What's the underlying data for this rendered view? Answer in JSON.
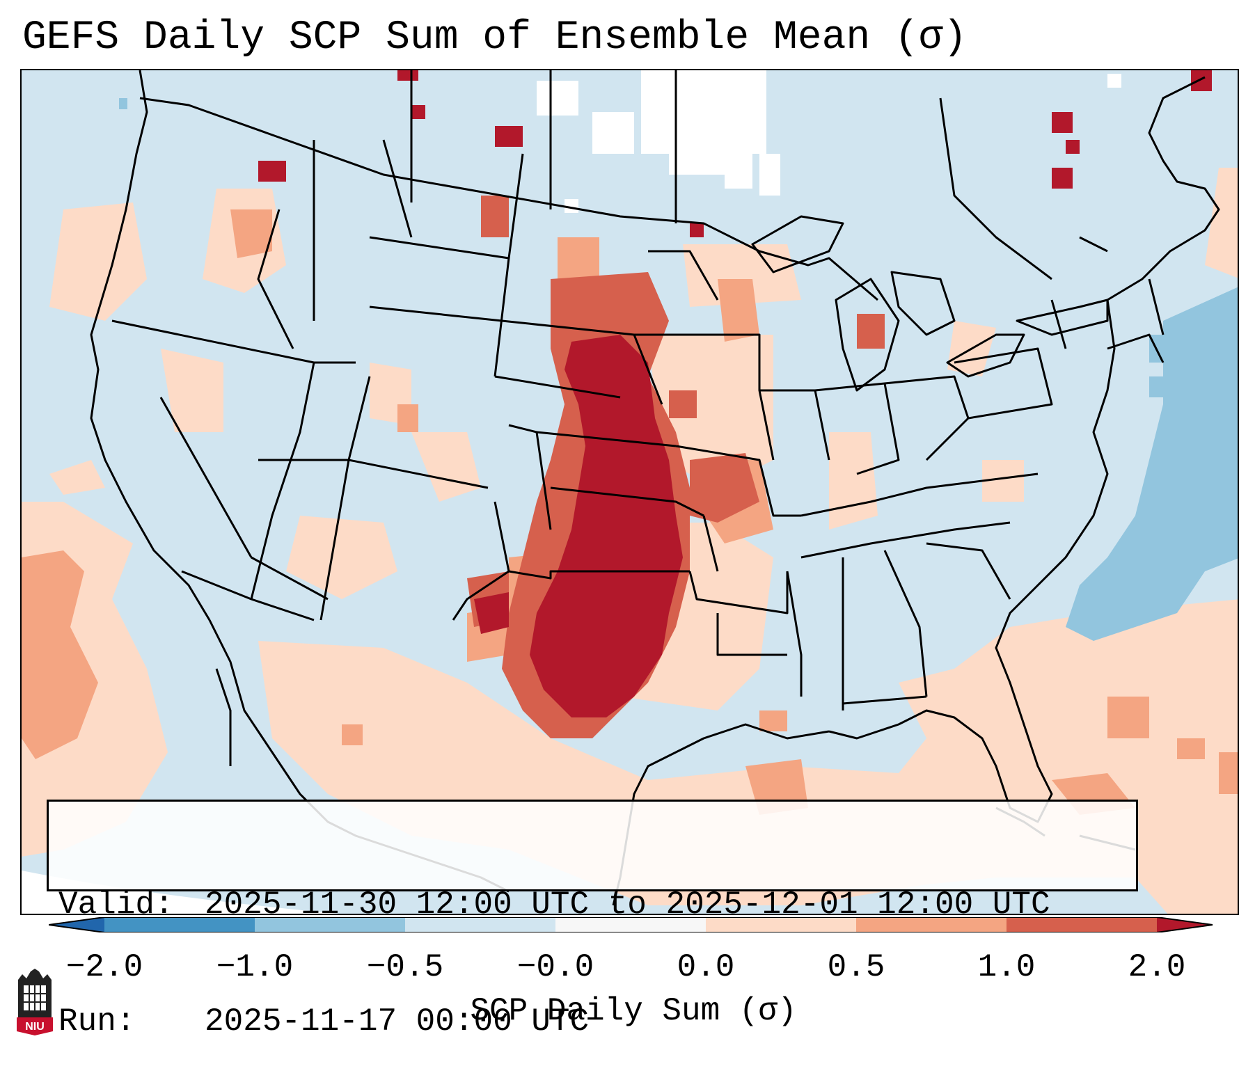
{
  "title": "GEFS Daily SCP Sum of Ensemble Mean (σ)",
  "info": {
    "valid_label": "Valid:",
    "valid_value": "2025-11-30 12:00 UTC to 2025-12-01 12:00 UTC",
    "run_label": "Run:",
    "run_value": "2025-11-17 00:00 UTC"
  },
  "colorbar": {
    "label": "SCP Daily Sum (σ)",
    "ticks": [
      "−2.0",
      "−1.0",
      "−0.5",
      "−0.0",
      "0.0",
      "0.5",
      "1.0",
      "2.0"
    ],
    "colors": [
      "#4393c3",
      "#92c5de",
      "#d1e5f0",
      "#f7f7f7",
      "#fddbc7",
      "#f4a582",
      "#d6604d"
    ],
    "extend_low_color": "#2166ac",
    "extend_high_color": "#b2182b"
  },
  "map": {
    "background_color": "#d1e5f0",
    "positive_light": "#fddbc7",
    "positive_mid": "#f4a582",
    "positive_high": "#d6604d",
    "positive_max": "#b2182b",
    "negative_mid": "#92c5de",
    "near_zero": "#ffffff"
  },
  "logo": {
    "text": "NIU"
  }
}
